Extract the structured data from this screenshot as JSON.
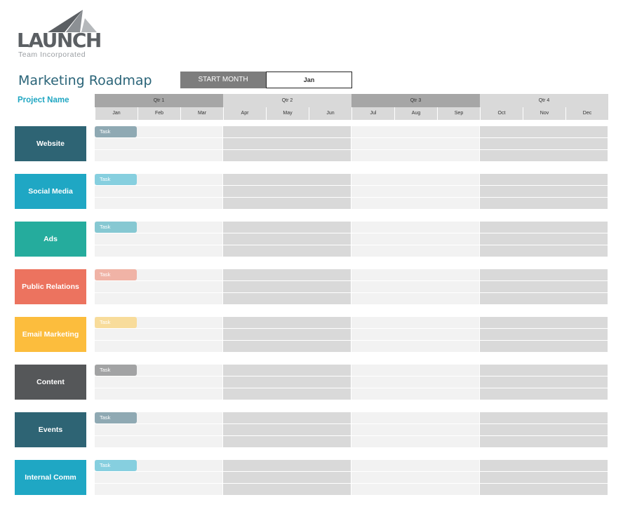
{
  "logo": {
    "word": "LAUNCH",
    "sub": "Team Incorporated"
  },
  "title": "Marketing Roadmap",
  "start_month": {
    "label": "START MONTH",
    "value": "Jan"
  },
  "project_label": "Project Name",
  "quarters": [
    "Qtr 1",
    "Qtr 2",
    "Qtr 3",
    "Qtr 4"
  ],
  "months": [
    "Jan",
    "Feb",
    "Mar",
    "Apr",
    "May",
    "Jun",
    "Jul",
    "Aug",
    "Sep",
    "Oct",
    "Nov",
    "Dec"
  ],
  "categories": [
    {
      "label": "Website",
      "color": "#2e6474",
      "task": "Task",
      "task_color": "#8fa9b3"
    },
    {
      "label": "Social Media",
      "color": "#1fa7c4",
      "task": "Task",
      "task_color": "#86cfdf"
    },
    {
      "label": "Ads",
      "color": "#25ac9d",
      "task": "Task",
      "task_color": "#86c8d2"
    },
    {
      "label": "Public Relations",
      "color": "#ec735f",
      "task": "Task",
      "task_color": "#f0b3a6"
    },
    {
      "label": "Email Marketing",
      "color": "#fcbd3d",
      "task": "Task",
      "task_color": "#f8dc9b"
    },
    {
      "label": "Content",
      "color": "#555759",
      "task": "Task",
      "task_color": "#a2a3a4"
    },
    {
      "label": "Events",
      "color": "#2e6474",
      "task": "Task",
      "task_color": "#8fa9b3"
    },
    {
      "label": "Internal Comm",
      "color": "#1fa7c4",
      "task": "Task",
      "task_color": "#86cfdf"
    }
  ],
  "colors": {
    "title": "#2a6478",
    "project_label": "#1fa6c2",
    "qtr_dark": "#a6a6a6",
    "qtr_light": "#d9d9d9",
    "month_bg": "#d9d9d9",
    "cell_light": "#f2f2f2",
    "cell_dark": "#d9d9d9"
  }
}
